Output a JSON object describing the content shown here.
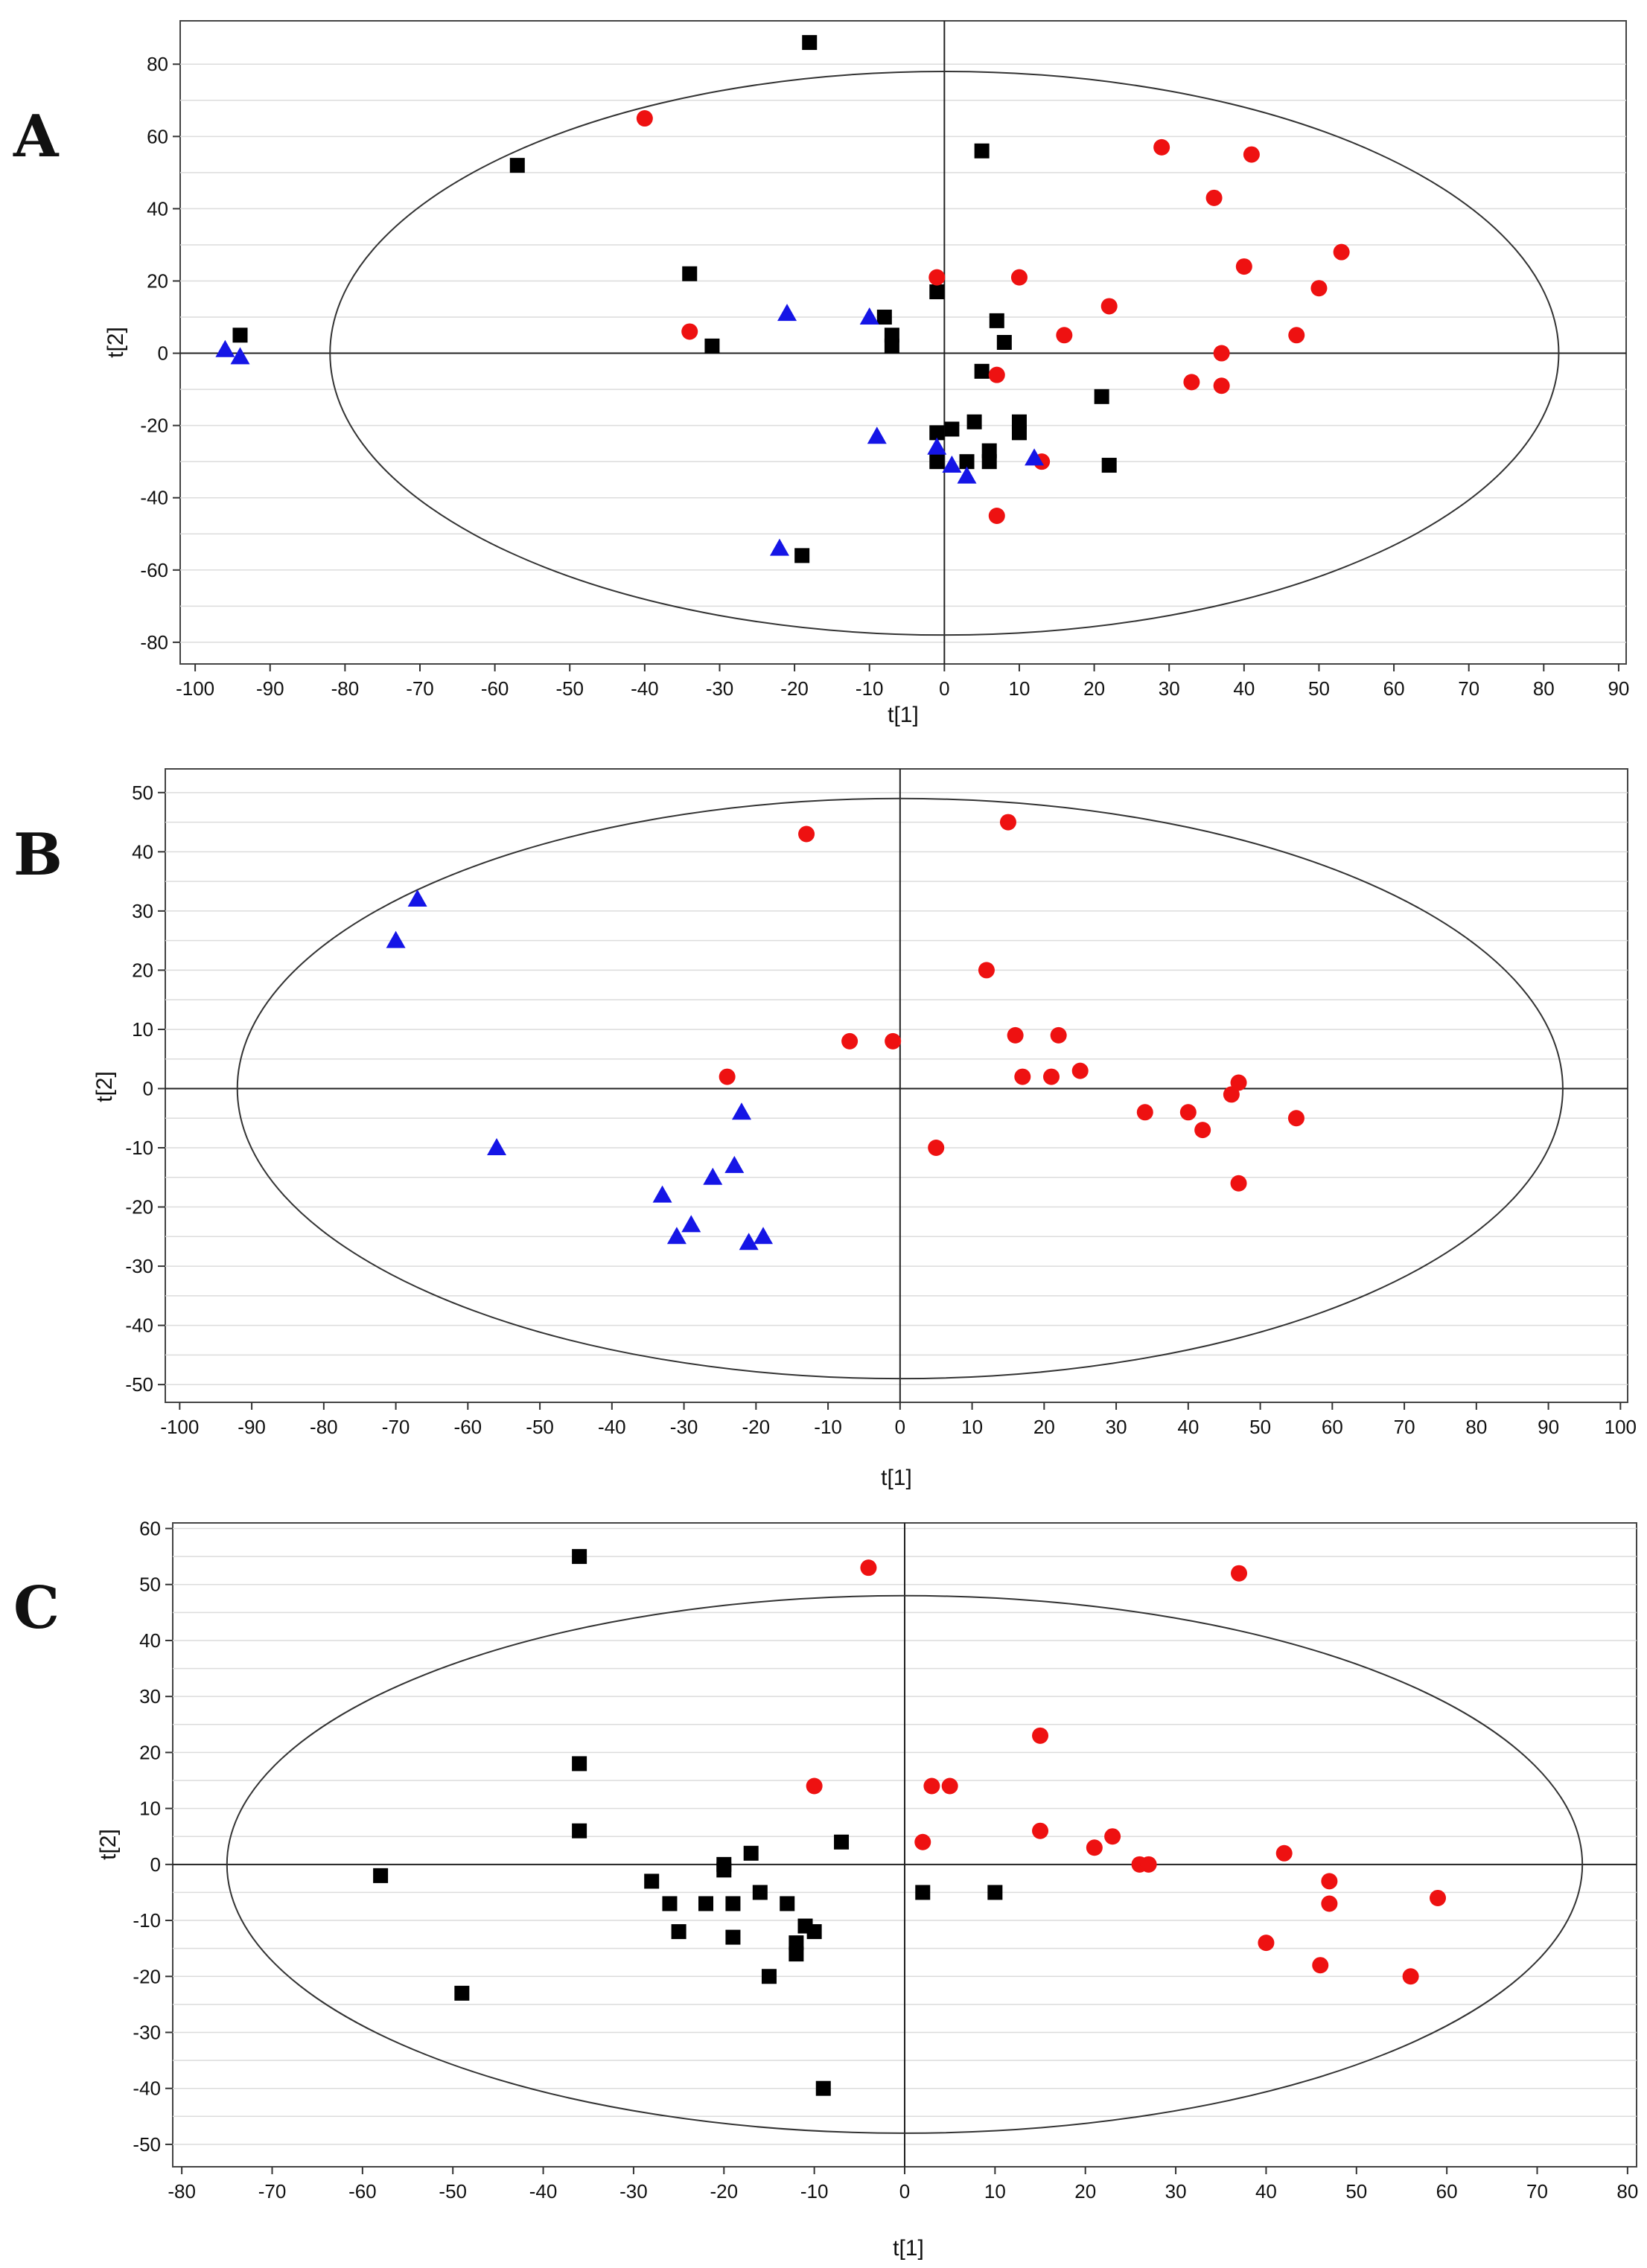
{
  "colors": {
    "group_black": "#000000",
    "group_red": "#ee1111",
    "group_blue": "#1515e6",
    "grid": "#dcdcdc"
  },
  "chart_data": [
    {
      "panel": "A",
      "type": "scatter",
      "xlabel": "t[1]",
      "ylabel": "t[2]",
      "xlim": [
        -102,
        91
      ],
      "ylim": [
        -86,
        92
      ],
      "xticks": [
        -100,
        -90,
        -80,
        -70,
        -60,
        -50,
        -40,
        -30,
        -20,
        -10,
        0,
        10,
        20,
        30,
        40,
        50,
        60,
        70,
        80,
        90
      ],
      "yticks": [
        -80,
        -60,
        -40,
        -20,
        0,
        20,
        40,
        60,
        80
      ],
      "ellipse": {
        "rx": 82,
        "ry": 78
      },
      "series": [
        {
          "name": "group-black-square",
          "marker": "square",
          "color": "#000000",
          "x": [
            -18,
            -57,
            5,
            -94,
            -34,
            -31,
            -1,
            -8,
            -7,
            -7,
            7,
            8,
            5,
            21,
            -1,
            1,
            4,
            10,
            10,
            -1,
            3,
            6,
            6,
            22,
            -19
          ],
          "y": [
            86,
            52,
            56,
            5,
            22,
            2,
            17,
            10,
            5,
            2,
            9,
            3,
            -5,
            -12,
            -22,
            -21,
            -19,
            -19,
            -22,
            -30,
            -30,
            -27,
            -30,
            -31,
            -56
          ]
        },
        {
          "name": "group-red-circle",
          "marker": "circle",
          "color": "#ee1111",
          "x": [
            -40,
            29,
            41,
            36,
            40,
            50,
            53,
            47,
            37,
            33,
            37,
            22,
            16,
            10,
            -1,
            -34,
            7,
            13,
            7
          ],
          "y": [
            65,
            57,
            55,
            43,
            24,
            18,
            28,
            5,
            0,
            -8,
            -9,
            13,
            5,
            21,
            21,
            6,
            -6,
            -30,
            -45
          ]
        },
        {
          "name": "group-blue-triangle",
          "marker": "triangle",
          "color": "#1515e6",
          "x": [
            -96,
            -94,
            -21,
            -10,
            -9,
            -1,
            1,
            3,
            12,
            -22
          ],
          "y": [
            1,
            -1,
            11,
            10,
            -23,
            -26,
            -31,
            -34,
            -29,
            -54
          ]
        }
      ]
    },
    {
      "panel": "B",
      "type": "scatter",
      "xlabel": "t[1]",
      "ylabel": "t[2]",
      "xlim": [
        -102,
        101
      ],
      "ylim": [
        -53,
        54
      ],
      "xticks": [
        -100,
        -90,
        -80,
        -70,
        -60,
        -50,
        -40,
        -30,
        -20,
        -10,
        0,
        10,
        20,
        30,
        40,
        50,
        60,
        70,
        80,
        90,
        100
      ],
      "yticks": [
        -50,
        -40,
        -30,
        -20,
        -10,
        0,
        10,
        20,
        30,
        40,
        50
      ],
      "ellipse": {
        "rx": 92,
        "ry": 49
      },
      "series": [
        {
          "name": "group-red-circle",
          "marker": "circle",
          "color": "#ee1111",
          "x": [
            -13,
            15,
            12,
            -7,
            -1,
            16,
            22,
            17,
            21,
            25,
            -24,
            5,
            34,
            40,
            42,
            46,
            47,
            47,
            55
          ],
          "y": [
            43,
            45,
            20,
            8,
            8,
            9,
            9,
            2,
            2,
            3,
            2,
            -10,
            -4,
            -4,
            -7,
            -1,
            1,
            -16,
            -5
          ]
        },
        {
          "name": "group-blue-triangle",
          "marker": "triangle",
          "color": "#1515e6",
          "x": [
            -67,
            -70,
            -56,
            -22,
            -33,
            -26,
            -23,
            -29,
            -31,
            -21,
            -19
          ],
          "y": [
            32,
            25,
            -10,
            -4,
            -18,
            -15,
            -13,
            -23,
            -25,
            -26,
            -25
          ]
        }
      ]
    },
    {
      "panel": "C",
      "type": "scatter",
      "xlabel": "t[1]",
      "ylabel": "t[2]",
      "xlim": [
        -81,
        81
      ],
      "ylim": [
        -54,
        61
      ],
      "xticks": [
        -80,
        -70,
        -60,
        -50,
        -40,
        -30,
        -20,
        -10,
        0,
        10,
        20,
        30,
        40,
        50,
        60,
        70,
        80
      ],
      "yticks": [
        -50,
        -40,
        -30,
        -20,
        -10,
        0,
        10,
        20,
        30,
        40,
        50,
        60
      ],
      "ellipse": {
        "rx": 75,
        "ry": 48
      },
      "series": [
        {
          "name": "group-black-square",
          "marker": "square",
          "color": "#000000",
          "x": [
            -36,
            -36,
            -36,
            -58,
            -49,
            -28,
            -26,
            -25,
            -22,
            -20,
            -20,
            -19,
            -19,
            -17,
            -16,
            -15,
            -13,
            -12,
            -12,
            -11,
            -10,
            -7,
            2,
            10,
            -9
          ],
          "y": [
            55,
            18,
            6,
            -2,
            -23,
            -3,
            -7,
            -12,
            -7,
            0,
            -1,
            -7,
            -13,
            2,
            -5,
            -20,
            -7,
            -14,
            -16,
            -11,
            -12,
            4,
            -5,
            -5,
            -40
          ]
        },
        {
          "name": "group-red-circle",
          "marker": "circle",
          "color": "#ee1111",
          "x": [
            -4,
            37,
            -10,
            15,
            3,
            5,
            2,
            15,
            21,
            23,
            26,
            27,
            42,
            47,
            47,
            59,
            40,
            46,
            56
          ],
          "y": [
            53,
            52,
            14,
            23,
            14,
            14,
            4,
            6,
            3,
            5,
            0,
            0,
            2,
            -3,
            -7,
            -6,
            -14,
            -18,
            -20
          ]
        }
      ]
    }
  ]
}
